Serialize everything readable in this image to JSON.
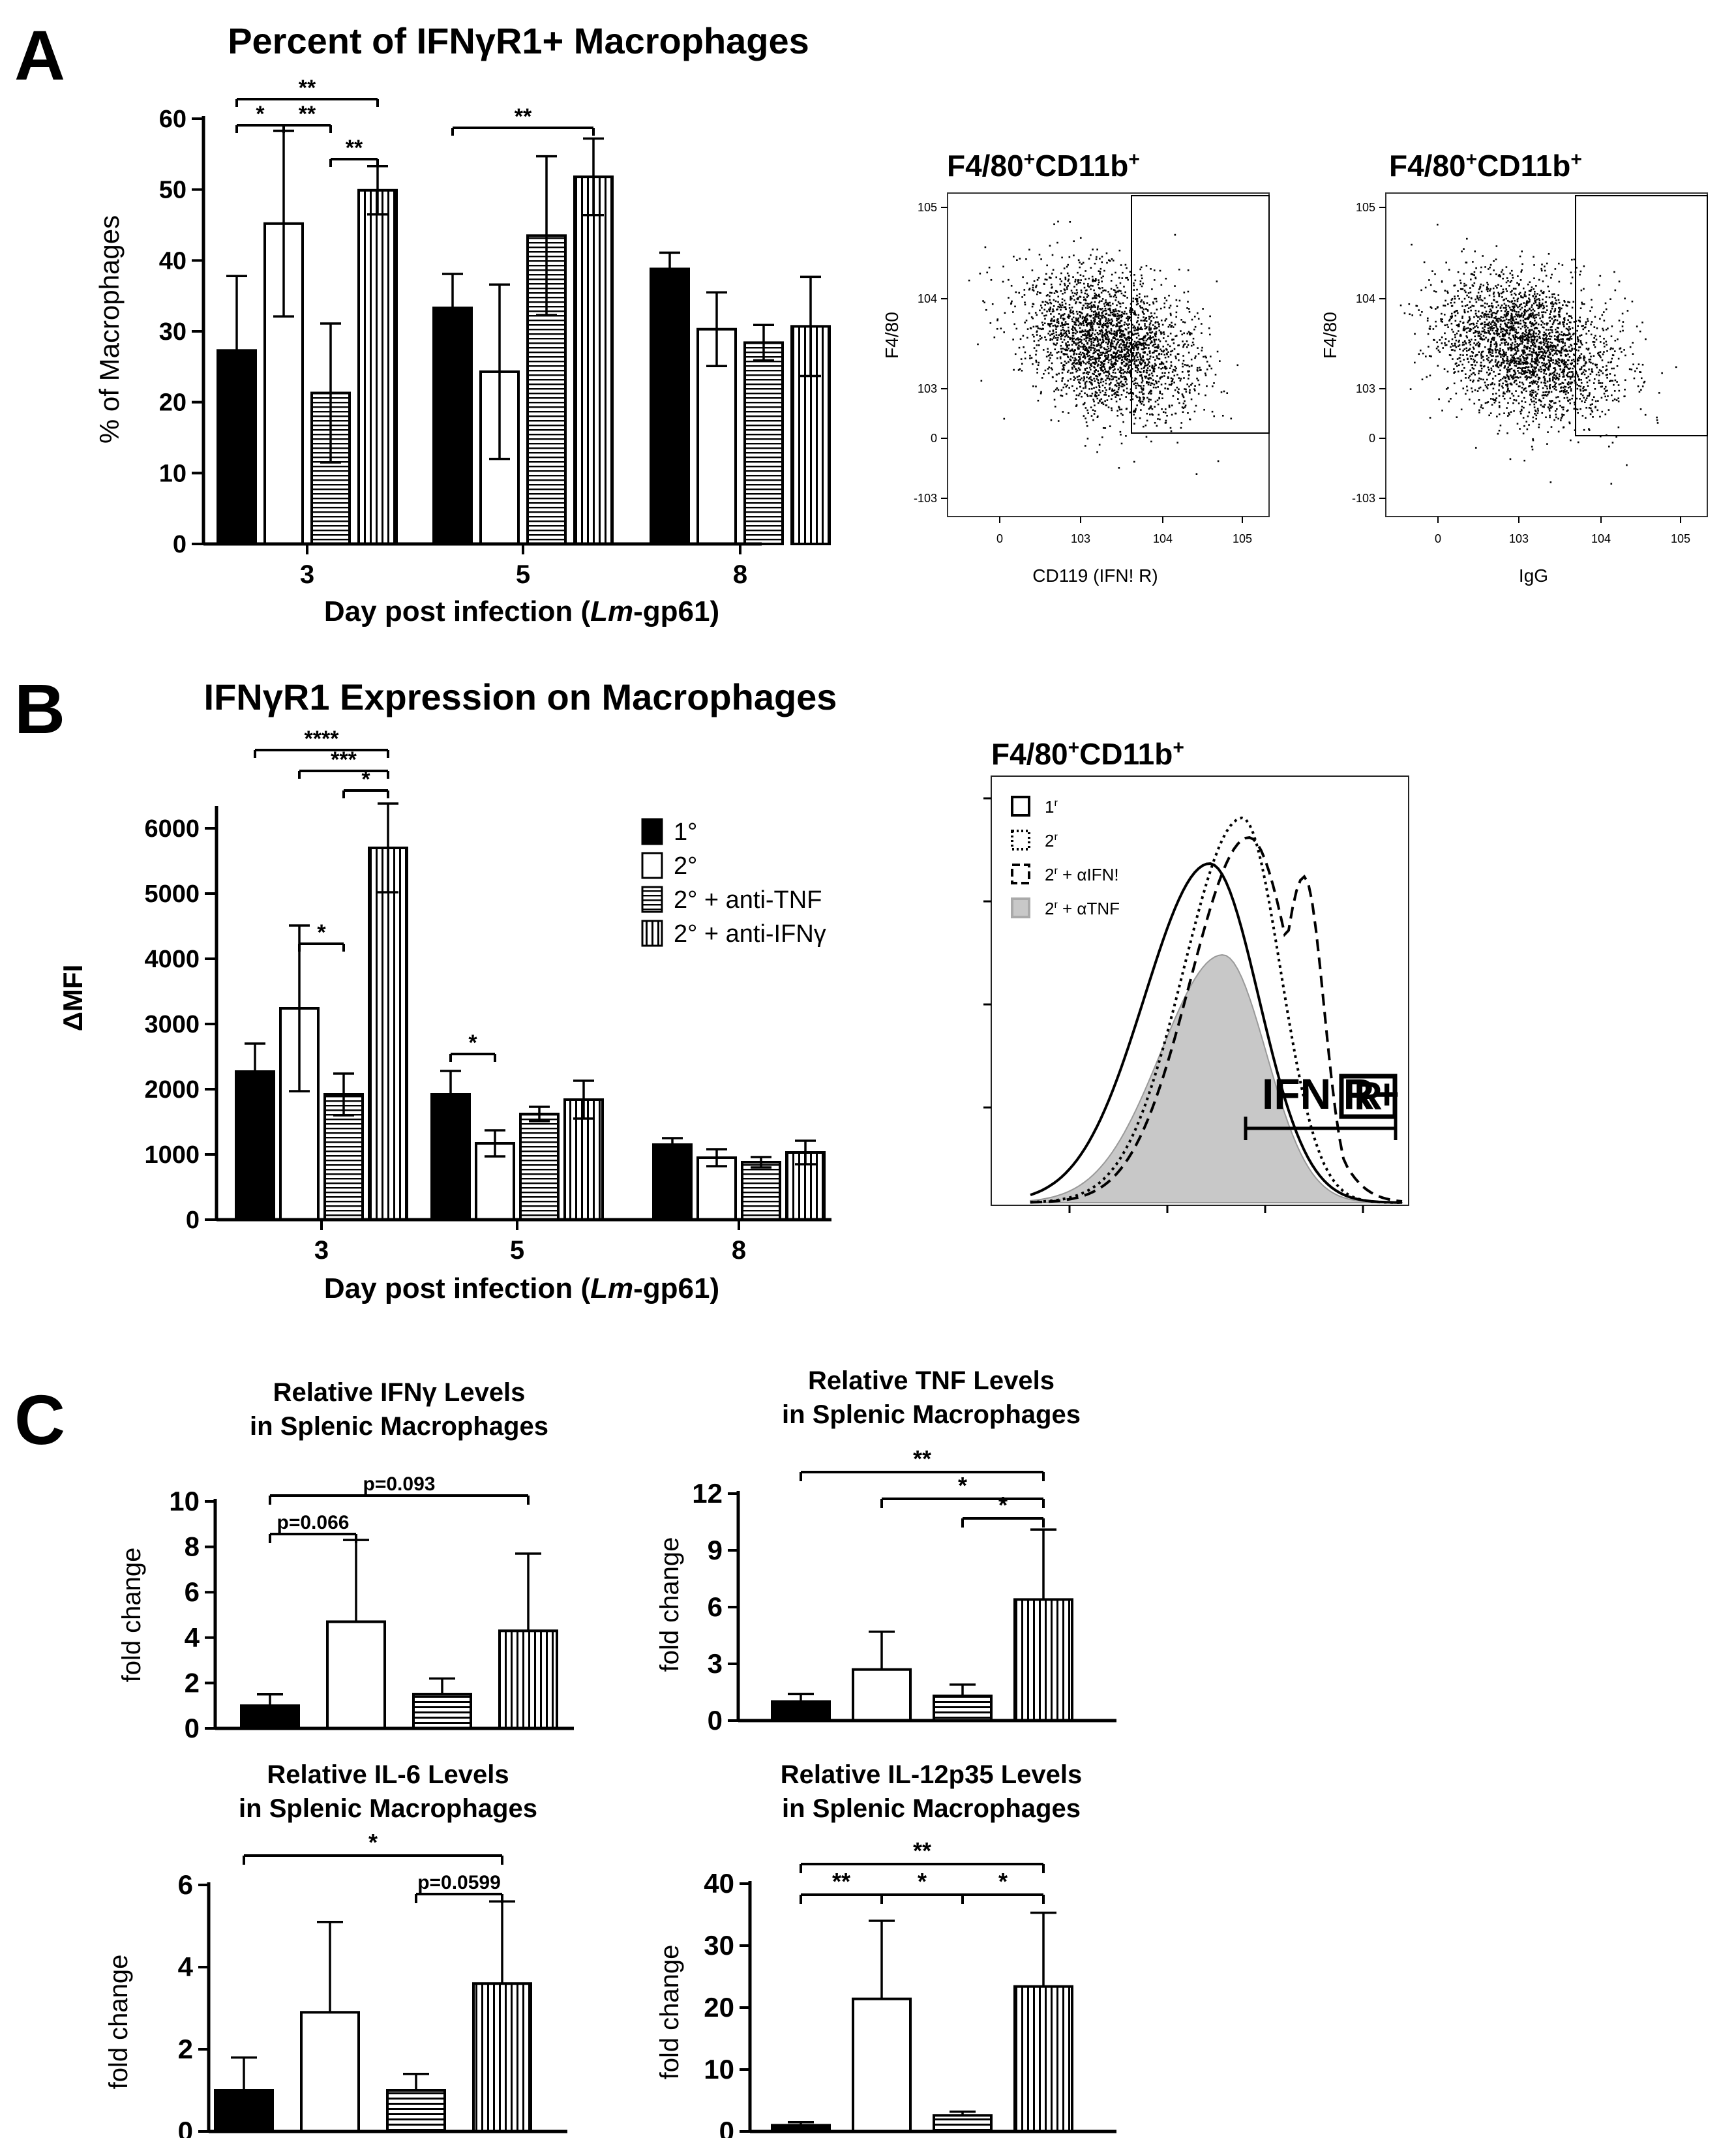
{
  "panel_labels": [
    "A",
    "B",
    "C"
  ],
  "chart_data": [
    {
      "id": "A1",
      "type": "bar",
      "title": "Percent of IFNγR1+ Macrophages",
      "xlabel": "Day post infection (Lm-gp61)",
      "xlabel_parts": [
        "Day post infection (",
        "Lm",
        "-gp61)"
      ],
      "ylabel": "% of Macrophages",
      "categories": [
        "3",
        "5",
        "8"
      ],
      "yticks": [
        0,
        10,
        20,
        30,
        40,
        50,
        60
      ],
      "ylim": [
        0,
        60
      ],
      "series": [
        {
          "name": "1°",
          "fill": "solid",
          "values": [
            27.3,
            33.3,
            38.8
          ],
          "errors": [
            10.5,
            4.8,
            2.3
          ]
        },
        {
          "name": "2°",
          "fill": "open",
          "values": [
            45.2,
            24.3,
            30.3
          ],
          "errors": [
            13.1,
            12.3,
            5.2
          ]
        },
        {
          "name": "2° + anti-TNF",
          "fill": "horizontal",
          "values": [
            21.3,
            43.5,
            28.4
          ],
          "errors": [
            9.8,
            11.2,
            2.5
          ]
        },
        {
          "name": "2° + anti-IFNγ",
          "fill": "vertical",
          "values": [
            49.9,
            51.8,
            30.7
          ],
          "errors": [
            3.4,
            5.4,
            7.0
          ]
        }
      ],
      "significance": [
        {
          "from": [
            0,
            0
          ],
          "to": [
            0,
            1
          ],
          "label": "*"
        },
        {
          "from": [
            0,
            1
          ],
          "to": [
            0,
            2
          ],
          "label": "**"
        },
        {
          "from": [
            0,
            0
          ],
          "to": [
            0,
            3
          ],
          "label": "**"
        },
        {
          "from": [
            0,
            2
          ],
          "to": [
            0,
            3
          ],
          "label": "**"
        },
        {
          "from": [
            1,
            0
          ],
          "to": [
            1,
            3
          ],
          "label": "**"
        }
      ]
    },
    {
      "id": "B1",
      "type": "bar",
      "title": "IFNγR1 Expression on Macrophages",
      "xlabel": "Day post infection (Lm-gp61)",
      "xlabel_parts": [
        "Day post infection (",
        "Lm",
        "-gp61)"
      ],
      "ylabel": "ΔMFI",
      "categories": [
        "3",
        "5",
        "8"
      ],
      "yticks": [
        0,
        1000,
        2000,
        3000,
        4000,
        5000,
        6000
      ],
      "ylim": [
        0,
        6300
      ],
      "legend": [
        "1°",
        "2°",
        "2° + anti-TNF",
        "2° + anti-IFNγ"
      ],
      "series": [
        {
          "name": "1°",
          "fill": "solid",
          "values": [
            2270,
            1920,
            1150
          ],
          "errors": [
            430,
            360,
            100
          ]
        },
        {
          "name": "2°",
          "fill": "open",
          "values": [
            3240,
            1170,
            950
          ],
          "errors": [
            1270,
            200,
            130
          ]
        },
        {
          "name": "2° + anti-TNF",
          "fill": "horizontal",
          "values": [
            1920,
            1620,
            880
          ],
          "errors": [
            320,
            110,
            80
          ]
        },
        {
          "name": "2° + anti-IFNγ",
          "fill": "vertical",
          "values": [
            5700,
            1840,
            1030
          ],
          "errors": [
            680,
            290,
            180
          ]
        }
      ],
      "significance": [
        {
          "from": [
            0,
            0
          ],
          "to": [
            0,
            3
          ],
          "label": "****"
        },
        {
          "from": [
            0,
            1
          ],
          "to": [
            0,
            3
          ],
          "label": "***"
        },
        {
          "from": [
            0,
            2
          ],
          "to": [
            0,
            3
          ],
          "label": "*"
        },
        {
          "from": [
            0,
            1
          ],
          "to": [
            0,
            2
          ],
          "label": "*"
        },
        {
          "from": [
            1,
            0
          ],
          "to": [
            1,
            1
          ],
          "label": "*"
        }
      ]
    },
    {
      "id": "C1",
      "type": "bar",
      "title": [
        "Relative IFNγ  Levels",
        "in Splenic Macrophages"
      ],
      "ylabel": "fold change",
      "yticks": [
        0,
        2,
        4,
        6,
        8,
        10
      ],
      "ylim": [
        0,
        10
      ],
      "values": [
        1.0,
        4.7,
        1.5,
        4.3
      ],
      "errors": [
        0.5,
        3.6,
        0.7,
        3.4
      ],
      "fills": [
        "solid",
        "open",
        "horizontal",
        "vertical"
      ],
      "significance": [
        {
          "from": 0,
          "to": 3,
          "label": "p=0.093"
        },
        {
          "from": 0,
          "to": 1,
          "label": "p=0.066"
        }
      ]
    },
    {
      "id": "C2",
      "type": "bar",
      "title": [
        "Relative TNF Levels",
        "in Splenic Macrophages"
      ],
      "ylabel": "fold change",
      "yticks": [
        0,
        3,
        6,
        9,
        12
      ],
      "ylim": [
        0,
        12
      ],
      "values": [
        1.0,
        2.7,
        1.3,
        6.4
      ],
      "errors": [
        0.4,
        2.0,
        0.6,
        3.7
      ],
      "fills": [
        "solid",
        "open",
        "horizontal",
        "vertical"
      ],
      "significance": [
        {
          "from": 0,
          "to": 3,
          "label": "**"
        },
        {
          "from": 1,
          "to": 3,
          "label": "*"
        },
        {
          "from": 2,
          "to": 3,
          "label": "*"
        }
      ]
    },
    {
      "id": "C3",
      "type": "bar",
      "title": [
        "Relative IL-6 Levels",
        "in Splenic Macrophages"
      ],
      "ylabel": "fold change",
      "yticks": [
        0,
        2,
        4,
        6
      ],
      "ylim": [
        0,
        6
      ],
      "values": [
        1.0,
        2.9,
        1.0,
        3.6
      ],
      "errors": [
        0.8,
        2.2,
        0.4,
        2.0
      ],
      "fills": [
        "solid",
        "open",
        "horizontal",
        "vertical"
      ],
      "significance": [
        {
          "from": 0,
          "to": 3,
          "label": "*"
        },
        {
          "from": 2,
          "to": 3,
          "label": "p=0.0599"
        }
      ]
    },
    {
      "id": "C4",
      "type": "bar",
      "title": [
        "Relative IL-12p35 Levels",
        "in Splenic Macrophages"
      ],
      "ylabel": "fold change",
      "yticks": [
        0,
        10,
        20,
        30,
        40
      ],
      "ylim": [
        0,
        40
      ],
      "values": [
        1.0,
        21.4,
        2.6,
        23.4
      ],
      "errors": [
        0.5,
        12.6,
        0.6,
        11.9
      ],
      "fills": [
        "solid",
        "open",
        "horizontal",
        "vertical"
      ],
      "significance": [
        {
          "from": 0,
          "to": 3,
          "label": "**"
        },
        {
          "from": 0,
          "to": 1,
          "label": "**"
        },
        {
          "from": 1,
          "to": 2,
          "label": "*"
        },
        {
          "from": 2,
          "to": 3,
          "label": "*"
        }
      ]
    },
    {
      "id": "A2",
      "type": "scatter",
      "title": "F4/80+CD11b+",
      "title_parts": [
        "F4/80",
        "+",
        "CD11b",
        "+"
      ],
      "xlabel": "CD119 (IFN! R)",
      "ylabel": "F4/80",
      "xticks": [
        "0",
        "10^3",
        "10^4",
        "10^5"
      ],
      "yticks": [
        "-10^3",
        "0",
        "10^3",
        "10^4",
        "10^5"
      ],
      "cloud_center": [
        3.1,
        3.6
      ],
      "gate": "CD119+"
    },
    {
      "id": "A3",
      "type": "scatter",
      "title": "F4/80+CD11b+",
      "title_parts": [
        "F4/80",
        "+",
        "CD11b",
        "+"
      ],
      "xlabel": "IgG",
      "ylabel": "F4/80",
      "xticks": [
        "0",
        "10^3",
        "10^4",
        "10^5"
      ],
      "yticks": [
        "-10^3",
        "0",
        "10^3",
        "10^4",
        "10^5"
      ],
      "cloud_center": [
        2.7,
        3.5
      ],
      "gate": "IgG+"
    },
    {
      "id": "B2",
      "type": "histogram",
      "title": "F4/80+CD11b+",
      "title_parts": [
        "F4/80",
        "+",
        "CD11b",
        "+"
      ],
      "legend": [
        {
          "label": "1",
          "sup": "r",
          "style": "solid"
        },
        {
          "label": "2",
          "sup": "r",
          "style": "dotted"
        },
        {
          "label": "2",
          "sup": "r",
          "suffix": " + αIFN!",
          "style": "dashed"
        },
        {
          "label": "2",
          "sup": "r",
          "suffix": " + αTNF",
          "style": "filled"
        }
      ],
      "gate_label": "IFN R+",
      "gate_label_box": "R"
    }
  ]
}
